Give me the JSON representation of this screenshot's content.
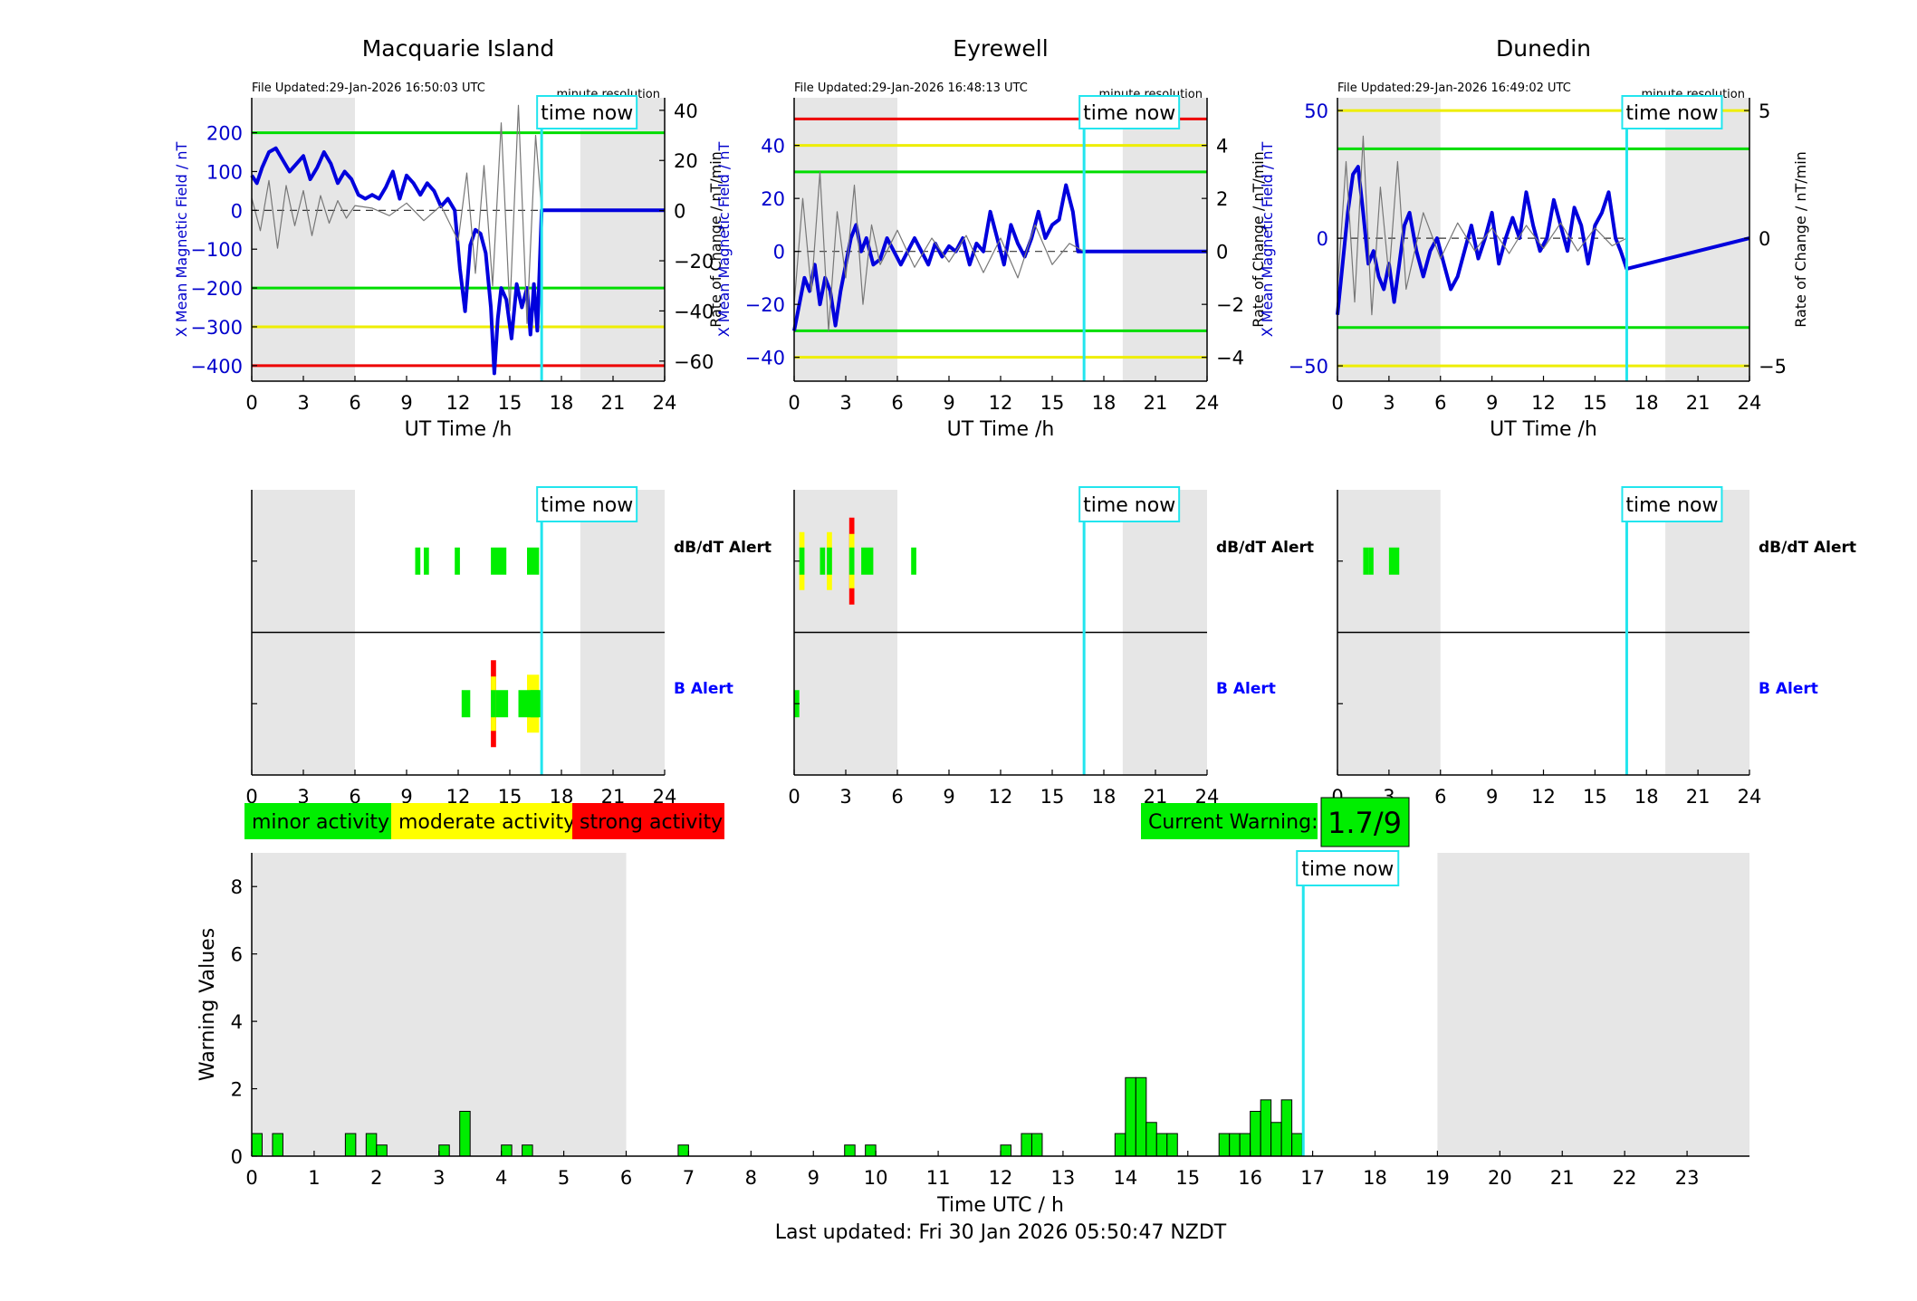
{
  "chart_data": [
    {
      "type": "line",
      "title": "Macquarie Island",
      "file_updated": "File Updated:29-Jan-2026 16:50:03 UTC",
      "resolution_label": "minute resolution",
      "time_now_label": "time now",
      "xlabel": "UT Time /h",
      "ylabel_left": "X Mean Magnetic Field / nT",
      "ylabel_right": "Rate of Change / nT/min",
      "xlim": [
        0,
        24
      ],
      "ylim_left": [
        -440,
        290
      ],
      "ylim_right": [
        -68,
        45
      ],
      "xticks": [
        0,
        3,
        6,
        9,
        12,
        15,
        18,
        21,
        24
      ],
      "yticks_left": [
        200,
        100,
        0,
        -100,
        -200,
        -300,
        -400
      ],
      "yticks_right": [
        40,
        20,
        0,
        -20,
        -40,
        -60
      ],
      "shaded_ranges": [
        [
          0,
          6
        ],
        [
          19.1,
          24
        ]
      ],
      "time_now": 16.85,
      "thresholds": [
        {
          "value": 200,
          "color": "#00dd00"
        },
        {
          "value": -200,
          "color": "#00dd00"
        },
        {
          "value": -300,
          "color": "#eeee00"
        },
        {
          "value": -400,
          "color": "#ee0000"
        }
      ],
      "series": [
        {
          "axis": "left",
          "color": "#0000dd",
          "x": [
            0,
            0.3,
            0.6,
            1.0,
            1.4,
            1.8,
            2.2,
            2.6,
            3.0,
            3.4,
            3.8,
            4.2,
            4.6,
            5.0,
            5.4,
            5.8,
            6.2,
            6.6,
            7.0,
            7.4,
            7.8,
            8.2,
            8.6,
            9.0,
            9.4,
            9.8,
            10.2,
            10.6,
            11.0,
            11.4,
            11.8,
            12.1,
            12.4,
            12.7,
            13.0,
            13.3,
            13.6,
            13.9,
            14.1,
            14.3,
            14.5,
            14.8,
            15.1,
            15.4,
            15.7,
            16.0,
            16.2,
            16.4,
            16.6,
            16.85,
            24
          ],
          "y": [
            90,
            70,
            110,
            150,
            160,
            130,
            100,
            120,
            140,
            80,
            110,
            150,
            120,
            70,
            100,
            80,
            40,
            30,
            40,
            30,
            60,
            100,
            30,
            90,
            70,
            40,
            70,
            50,
            10,
            30,
            0,
            -150,
            -260,
            -90,
            -50,
            -60,
            -110,
            -250,
            -420,
            -280,
            -200,
            -230,
            -330,
            -190,
            -250,
            -200,
            -320,
            -190,
            -310,
            0,
            0
          ]
        },
        {
          "axis": "right",
          "color": "#777777",
          "x": [
            0,
            0.5,
            1.0,
            1.5,
            2.0,
            2.5,
            3.0,
            3.5,
            4.0,
            4.5,
            5.0,
            5.5,
            6.0,
            7.0,
            8.0,
            9.0,
            10.0,
            11.0,
            12.0,
            12.5,
            13.0,
            13.5,
            14.0,
            14.5,
            15.0,
            15.5,
            16.0,
            16.5,
            16.85
          ],
          "y": [
            5,
            -8,
            12,
            -15,
            10,
            -6,
            8,
            -10,
            6,
            -5,
            4,
            -3,
            2,
            1,
            -2,
            3,
            -4,
            2,
            -12,
            15,
            -25,
            18,
            -30,
            35,
            -40,
            42,
            -45,
            30,
            0
          ]
        }
      ]
    },
    {
      "type": "line",
      "title": "Eyrewell",
      "file_updated": "File Updated:29-Jan-2026 16:48:13 UTC",
      "resolution_label": "minute resolution",
      "time_now_label": "time now",
      "xlabel": "UT Time /h",
      "ylabel_left": "X Mean Magnetic Field / nT",
      "ylabel_right": "Rate of Change / nT/min",
      "xlim": [
        0,
        24
      ],
      "ylim_left": [
        -49,
        58
      ],
      "ylim_right": [
        -4.9,
        5.8
      ],
      "xticks": [
        0,
        3,
        6,
        9,
        12,
        15,
        18,
        21,
        24
      ],
      "yticks_left": [
        40,
        20,
        0,
        -20,
        -40
      ],
      "yticks_right": [
        4,
        2,
        0,
        -2,
        -4
      ],
      "shaded_ranges": [
        [
          0,
          6
        ],
        [
          19.1,
          24
        ]
      ],
      "time_now": 16.85,
      "thresholds": [
        {
          "value": 50,
          "color": "#ee0000"
        },
        {
          "value": 40,
          "color": "#eeee00"
        },
        {
          "value": 30,
          "color": "#00dd00"
        },
        {
          "value": -30,
          "color": "#00dd00"
        },
        {
          "value": -40,
          "color": "#eeee00"
        }
      ],
      "series": [
        {
          "axis": "left",
          "color": "#0000dd",
          "x": [
            0,
            0.3,
            0.6,
            0.9,
            1.2,
            1.5,
            1.8,
            2.1,
            2.4,
            2.7,
            3.0,
            3.3,
            3.6,
            3.9,
            4.2,
            4.6,
            5.0,
            5.4,
            5.8,
            6.2,
            6.6,
            7.0,
            7.4,
            7.8,
            8.2,
            8.6,
            9.0,
            9.4,
            9.8,
            10.2,
            10.6,
            11.0,
            11.4,
            11.8,
            12.2,
            12.6,
            13.0,
            13.4,
            13.8,
            14.2,
            14.6,
            15.0,
            15.4,
            15.8,
            16.2,
            16.5,
            16.85,
            24
          ],
          "y": [
            -30,
            -20,
            -10,
            -15,
            -5,
            -20,
            -10,
            -15,
            -28,
            -15,
            -5,
            5,
            10,
            0,
            5,
            -5,
            -3,
            5,
            0,
            -5,
            0,
            5,
            0,
            -5,
            3,
            -2,
            2,
            0,
            5,
            -5,
            3,
            0,
            15,
            5,
            -5,
            10,
            3,
            -2,
            5,
            15,
            5,
            10,
            12,
            25,
            15,
            0,
            0,
            0
          ]
        },
        {
          "axis": "right",
          "color": "#777777",
          "x": [
            0,
            0.5,
            1.0,
            1.5,
            2.0,
            2.5,
            3.0,
            3.5,
            4.0,
            4.5,
            5.0,
            6.0,
            7.0,
            8.0,
            9.0,
            10.0,
            11.0,
            12.0,
            13.0,
            14.0,
            15.0,
            16.0,
            16.85
          ],
          "y": [
            -2,
            2,
            -1.5,
            3,
            -3,
            1.5,
            -1,
            2.5,
            -2,
            1,
            -0.5,
            0.8,
            -0.6,
            0.5,
            -0.4,
            0.6,
            -0.8,
            0.5,
            -1,
            1,
            -0.5,
            0.3,
            0
          ]
        }
      ]
    },
    {
      "type": "line",
      "title": "Dunedin",
      "file_updated": "File Updated:29-Jan-2026 16:49:02 UTC",
      "resolution_label": "minute resolution",
      "time_now_label": "time now",
      "xlabel": "UT Time /h",
      "ylabel_left": "X Mean Magnetic Field / nT",
      "ylabel_right": "Rate of Change / nT/min",
      "xlim": [
        0,
        24
      ],
      "ylim_left": [
        -56,
        55
      ],
      "ylim_right": [
        -5.6,
        5.5
      ],
      "xticks": [
        0,
        3,
        6,
        9,
        12,
        15,
        18,
        21,
        24
      ],
      "yticks_left": [
        50,
        0,
        -50
      ],
      "yticks_right": [
        5,
        0,
        -5
      ],
      "shaded_ranges": [
        [
          0,
          6
        ],
        [
          19.1,
          24
        ]
      ],
      "time_now": 16.85,
      "thresholds": [
        {
          "value": 50,
          "color": "#eeee00"
        },
        {
          "value": 35,
          "color": "#00dd00"
        },
        {
          "value": -35,
          "color": "#00dd00"
        },
        {
          "value": -50,
          "color": "#eeee00"
        }
      ],
      "series": [
        {
          "axis": "left",
          "color": "#0000dd",
          "x": [
            0,
            0.3,
            0.6,
            0.9,
            1.2,
            1.5,
            1.8,
            2.1,
            2.4,
            2.7,
            3.0,
            3.3,
            3.6,
            3.9,
            4.2,
            4.6,
            5.0,
            5.4,
            5.8,
            6.2,
            6.6,
            7.0,
            7.4,
            7.8,
            8.2,
            8.6,
            9.0,
            9.4,
            9.8,
            10.2,
            10.6,
            11.0,
            11.4,
            11.8,
            12.2,
            12.6,
            13.0,
            13.4,
            13.8,
            14.2,
            14.6,
            15.0,
            15.4,
            15.8,
            16.2,
            16.5,
            16.85,
            24
          ],
          "y": [
            -30,
            -10,
            10,
            25,
            28,
            10,
            -10,
            -5,
            -15,
            -20,
            -10,
            -25,
            -10,
            5,
            10,
            -5,
            -15,
            -5,
            0,
            -10,
            -20,
            -15,
            -5,
            5,
            -8,
            0,
            10,
            -10,
            0,
            8,
            0,
            18,
            5,
            -5,
            0,
            15,
            5,
            -5,
            12,
            5,
            -10,
            5,
            10,
            18,
            0,
            -5,
            -12,
            0
          ]
        },
        {
          "axis": "right",
          "color": "#777777",
          "x": [
            0,
            0.5,
            1.0,
            1.5,
            2.0,
            2.5,
            3.0,
            3.5,
            4.0,
            5.0,
            6.0,
            7.0,
            8.0,
            9.0,
            10.0,
            11.0,
            12.0,
            13.0,
            14.0,
            15.0,
            16.0,
            16.85
          ],
          "y": [
            -2,
            3,
            -2.5,
            4,
            -3,
            2,
            -1.5,
            3,
            -2,
            1,
            -0.8,
            0.6,
            -0.5,
            0.4,
            -0.6,
            0.5,
            -0.4,
            0.6,
            -0.5,
            0.4,
            -0.3,
            0
          ]
        }
      ]
    },
    {
      "type": "heatmap",
      "title": "Macquarie Island",
      "time_now_label": "time now",
      "rows": [
        "dB/dT Alert",
        "B Alert"
      ],
      "row_colors": [
        "#000000",
        "#0000ff"
      ],
      "xlim": [
        0,
        24
      ],
      "xticks": [
        0,
        3,
        6,
        9,
        12,
        15,
        18,
        21,
        24
      ],
      "shaded_ranges": [
        [
          0,
          6
        ],
        [
          19.1,
          24
        ]
      ],
      "time_now": 16.85,
      "events": [
        {
          "row": 0,
          "start": 9.5,
          "end": 9.8,
          "level": "minor"
        },
        {
          "row": 0,
          "start": 10.0,
          "end": 10.3,
          "level": "minor"
        },
        {
          "row": 0,
          "start": 11.8,
          "end": 12.1,
          "level": "minor"
        },
        {
          "row": 0,
          "start": 13.9,
          "end": 14.8,
          "level": "minor"
        },
        {
          "row": 0,
          "start": 16.0,
          "end": 16.7,
          "level": "minor"
        },
        {
          "row": 1,
          "start": 12.2,
          "end": 12.7,
          "level": "minor"
        },
        {
          "row": 1,
          "start": 13.9,
          "end": 14.2,
          "level": "strong"
        },
        {
          "row": 1,
          "start": 14.2,
          "end": 14.9,
          "level": "minor"
        },
        {
          "row": 1,
          "start": 15.5,
          "end": 16.0,
          "level": "minor"
        },
        {
          "row": 1,
          "start": 16.0,
          "end": 16.7,
          "level": "moderate"
        },
        {
          "row": 1,
          "start": 16.2,
          "end": 16.85,
          "level": "minor"
        }
      ]
    },
    {
      "type": "heatmap",
      "title": "Eyrewell",
      "time_now_label": "time now",
      "rows": [
        "dB/dT Alert",
        "B Alert"
      ],
      "row_colors": [
        "#000000",
        "#0000ff"
      ],
      "xlim": [
        0,
        24
      ],
      "xticks": [
        0,
        3,
        6,
        9,
        12,
        15,
        18,
        21,
        24
      ],
      "shaded_ranges": [
        [
          0,
          6
        ],
        [
          19.1,
          24
        ]
      ],
      "time_now": 16.85,
      "events": [
        {
          "row": 0,
          "start": 0.3,
          "end": 0.6,
          "level": "moderate"
        },
        {
          "row": 0,
          "start": 1.5,
          "end": 1.8,
          "level": "minor"
        },
        {
          "row": 0,
          "start": 1.9,
          "end": 2.2,
          "level": "moderate"
        },
        {
          "row": 0,
          "start": 3.2,
          "end": 3.5,
          "level": "strong"
        },
        {
          "row": 0,
          "start": 3.9,
          "end": 4.6,
          "level": "minor"
        },
        {
          "row": 0,
          "start": 6.8,
          "end": 7.1,
          "level": "minor"
        },
        {
          "row": 1,
          "start": 0.0,
          "end": 0.3,
          "level": "minor"
        }
      ]
    },
    {
      "type": "heatmap",
      "title": "Dunedin",
      "time_now_label": "time now",
      "rows": [
        "dB/dT Alert",
        "B Alert"
      ],
      "row_colors": [
        "#000000",
        "#0000ff"
      ],
      "xlim": [
        0,
        24
      ],
      "xticks": [
        0,
        3,
        6,
        9,
        12,
        15,
        18,
        21,
        24
      ],
      "shaded_ranges": [
        [
          0,
          6
        ],
        [
          19.1,
          24
        ]
      ],
      "time_now": 16.85,
      "events": [
        {
          "row": 0,
          "start": 1.5,
          "end": 1.8,
          "level": "minor"
        },
        {
          "row": 0,
          "start": 1.8,
          "end": 2.1,
          "level": "minor"
        },
        {
          "row": 0,
          "start": 3.0,
          "end": 3.6,
          "level": "minor"
        }
      ]
    },
    {
      "type": "bar",
      "xlabel": "Time UTC / h",
      "ylabel": "Warning Values",
      "time_now_label": "time now",
      "xlim": [
        0,
        24
      ],
      "ylim": [
        0,
        9
      ],
      "xticks": [
        0,
        1,
        2,
        3,
        4,
        5,
        6,
        7,
        8,
        9,
        10,
        11,
        12,
        13,
        14,
        15,
        16,
        17,
        18,
        19,
        20,
        21,
        22,
        23
      ],
      "yticks": [
        0,
        2,
        4,
        6,
        8
      ],
      "shaded_ranges": [
        [
          0,
          6
        ],
        [
          19,
          24
        ]
      ],
      "time_now": 16.85,
      "bar_width": 0.1667,
      "bar_color": "#00ee00",
      "bars": {
        "x": [
          0.0,
          0.333,
          1.5,
          1.833,
          2.0,
          3.0,
          3.333,
          4.0,
          4.333,
          6.833,
          9.5,
          9.833,
          12.0,
          12.333,
          12.5,
          13.833,
          14.0,
          14.167,
          14.333,
          14.5,
          14.667,
          15.5,
          15.667,
          15.833,
          16.0,
          16.167,
          16.333,
          16.5,
          16.667
        ],
        "values": [
          0.67,
          0.67,
          0.67,
          0.67,
          0.33,
          0.33,
          1.33,
          0.33,
          0.33,
          0.33,
          0.33,
          0.33,
          0.33,
          0.67,
          0.67,
          0.67,
          2.33,
          2.33,
          1.0,
          0.67,
          0.67,
          0.67,
          0.67,
          0.67,
          1.33,
          1.67,
          1.0,
          1.67,
          0.67
        ]
      }
    }
  ],
  "legend": {
    "minor": {
      "label": "minor activity",
      "color": "#00ee00"
    },
    "moderate": {
      "label": "moderate activity",
      "color": "#ffff00"
    },
    "strong": {
      "label": "strong activity",
      "color": "#ff0000"
    }
  },
  "current_warning": {
    "label": "Current Warning:",
    "value": "1.7/9",
    "color": "#00ee00"
  },
  "footer": {
    "last_updated": "Last updated: Fri 30 Jan 2026 05:50:47 NZDT"
  }
}
